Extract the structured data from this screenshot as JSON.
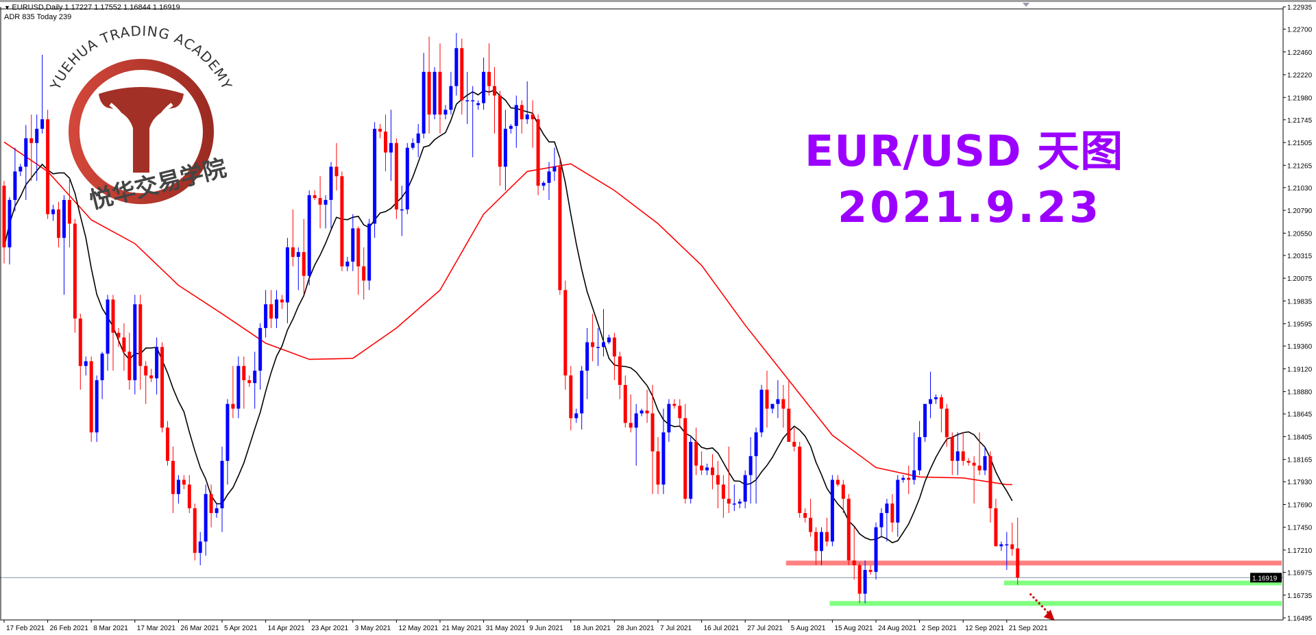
{
  "header": {
    "symbol_line": "EURUSD,Daily  1.17227 1.17552 1.16844 1.16919",
    "adr_line": "ADR 835  Today 239"
  },
  "overlay": {
    "title": "EUR/USD 天图",
    "date": "2021.9.23",
    "color": "#9b00ff"
  },
  "logo": {
    "text_en": "YUEHUA TRADING ACADEMY",
    "text_cn": "悦华交易学院",
    "color": "#b3362a"
  },
  "chart_data": {
    "type": "candlestick",
    "symbol": "EURUSD",
    "timeframe": "Daily",
    "colors": {
      "bull": "#0000ff",
      "bear": "#ff0000",
      "ma_fast": "#000000",
      "ma_slow": "#ff0000"
    },
    "ylim": [
      1.16495,
      1.22935
    ],
    "y_ticks": [
      "1.22935",
      "1.22700",
      "1.22460",
      "1.22220",
      "1.21980",
      "1.21745",
      "1.21505",
      "1.21265",
      "1.21030",
      "1.20790",
      "1.20550",
      "1.20315",
      "1.20075",
      "1.19835",
      "1.19595",
      "1.19360",
      "1.19120",
      "1.18880",
      "1.18645",
      "1.18405",
      "1.18165",
      "1.17930",
      "1.17690",
      "1.17450",
      "1.17210",
      "1.16975",
      "1.16735",
      "1.16495"
    ],
    "x_ticks": [
      "17 Feb 2021",
      "26 Feb 2021",
      "8 Mar 2021",
      "17 Mar 2021",
      "26 Mar 2021",
      "5 Apr 2021",
      "14 Apr 2021",
      "23 Apr 2021",
      "3 May 2021",
      "12 May 2021",
      "21 May 2021",
      "31 May 2021",
      "9 Jun 2021",
      "18 Jun 2021",
      "28 Jun 2021",
      "7 Jul 2021",
      "16 Jul 2021",
      "27 Jul 2021",
      "5 Aug 2021",
      "15 Aug 2021",
      "24 Aug 2021",
      "2 Sep 2021",
      "12 Sep 2021",
      "21 Sep 2021"
    ],
    "current_price": "1.16919",
    "ohlc": [
      [
        1.2105,
        1.211,
        1.2023,
        1.204
      ],
      [
        1.204,
        1.2093,
        1.2022,
        1.209
      ],
      [
        1.209,
        1.2145,
        1.2078,
        1.212
      ],
      [
        1.212,
        1.2128,
        1.2115,
        1.2125
      ],
      [
        1.2125,
        1.2169,
        1.209,
        1.2155
      ],
      [
        1.2155,
        1.218,
        1.211,
        1.215
      ],
      [
        1.215,
        1.218,
        1.211,
        1.2165
      ],
      [
        1.2165,
        1.2243,
        1.216,
        1.2175
      ],
      [
        1.2175,
        1.2185,
        1.207,
        1.2075
      ],
      [
        1.2075,
        1.2085,
        1.2068,
        1.208
      ],
      [
        1.208,
        1.2088,
        1.204,
        1.205
      ],
      [
        1.205,
        1.2095,
        1.199,
        1.209
      ],
      [
        1.209,
        1.2113,
        1.204,
        1.2065
      ],
      [
        1.2065,
        1.207,
        1.195,
        1.1965
      ],
      [
        1.1965,
        1.197,
        1.189,
        1.1915
      ],
      [
        1.1915,
        1.1925,
        1.1905,
        1.192
      ],
      [
        1.192,
        1.1925,
        1.1835,
        1.1845
      ],
      [
        1.1845,
        1.1905,
        1.1835,
        1.19
      ],
      [
        1.19,
        1.193,
        1.188,
        1.1928
      ],
      [
        1.1928,
        1.199,
        1.191,
        1.1985
      ],
      [
        1.1985,
        1.199,
        1.191,
        1.195
      ],
      [
        1.195,
        1.1955,
        1.1935,
        1.1945
      ],
      [
        1.1945,
        1.196,
        1.191,
        1.193
      ],
      [
        1.193,
        1.195,
        1.189,
        1.19
      ],
      [
        1.19,
        1.199,
        1.1885,
        1.198
      ],
      [
        1.198,
        1.199,
        1.189,
        1.1915
      ],
      [
        1.1915,
        1.192,
        1.1875,
        1.1905
      ],
      [
        1.1905,
        1.1912,
        1.1898,
        1.1902
      ],
      [
        1.1902,
        1.1945,
        1.1885,
        1.1935
      ],
      [
        1.1935,
        1.194,
        1.1845,
        1.185
      ],
      [
        1.185,
        1.1857,
        1.181,
        1.1815
      ],
      [
        1.1815,
        1.183,
        1.176,
        1.178
      ],
      [
        1.178,
        1.18,
        1.177,
        1.1795
      ],
      [
        1.1795,
        1.18,
        1.1785,
        1.179
      ],
      [
        1.179,
        1.18,
        1.176,
        1.1765
      ],
      [
        1.1765,
        1.177,
        1.171,
        1.1718
      ],
      [
        1.1718,
        1.174,
        1.1705,
        1.173
      ],
      [
        1.173,
        1.179,
        1.1715,
        1.178
      ],
      [
        1.178,
        1.179,
        1.1745,
        1.176
      ],
      [
        1.176,
        1.177,
        1.1755,
        1.1765
      ],
      [
        1.1765,
        1.183,
        1.174,
        1.1815
      ],
      [
        1.1815,
        1.188,
        1.179,
        1.1875
      ],
      [
        1.1875,
        1.1915,
        1.186,
        1.187
      ],
      [
        1.187,
        1.1925,
        1.186,
        1.1915
      ],
      [
        1.1915,
        1.1925,
        1.187,
        1.19
      ],
      [
        1.19,
        1.1905,
        1.1893,
        1.1897
      ],
      [
        1.1897,
        1.193,
        1.187,
        1.191
      ],
      [
        1.191,
        1.196,
        1.189,
        1.1955
      ],
      [
        1.1955,
        1.1995,
        1.1945,
        1.198
      ],
      [
        1.198,
        1.1995,
        1.1955,
        1.1965
      ],
      [
        1.1965,
        1.1995,
        1.1955,
        1.1985
      ],
      [
        1.1985,
        1.199,
        1.1975,
        1.1982
      ],
      [
        1.1982,
        1.205,
        1.196,
        1.204
      ],
      [
        1.204,
        1.208,
        1.202,
        1.203
      ],
      [
        1.203,
        1.204,
        1.1995,
        1.2035
      ],
      [
        1.2035,
        1.207,
        1.199,
        1.201
      ],
      [
        1.201,
        1.21,
        1.2,
        1.2095
      ],
      [
        1.2095,
        1.21,
        1.209,
        1.2092
      ],
      [
        1.2092,
        1.2115,
        1.206,
        1.2085
      ],
      [
        1.2085,
        1.2095,
        1.206,
        1.209
      ],
      [
        1.209,
        1.213,
        1.206,
        1.2125
      ],
      [
        1.2125,
        1.215,
        1.21,
        1.2115
      ],
      [
        1.2115,
        1.212,
        1.2015,
        1.202
      ],
      [
        1.202,
        1.203,
        1.2015,
        1.2025
      ],
      [
        1.2025,
        1.2075,
        1.2015,
        1.206
      ],
      [
        1.206,
        1.2062,
        1.199,
        1.202
      ],
      [
        1.202,
        1.204,
        1.1985,
        1.2005
      ],
      [
        1.2005,
        1.207,
        1.1995,
        1.2065
      ],
      [
        1.2065,
        1.2172,
        1.205,
        1.2165
      ],
      [
        1.2165,
        1.217,
        1.2155,
        1.2162
      ],
      [
        1.2162,
        1.218,
        1.212,
        1.214
      ],
      [
        1.214,
        1.2185,
        1.211,
        1.215
      ],
      [
        1.215,
        1.2155,
        1.207,
        1.208
      ],
      [
        1.208,
        1.2105,
        1.2052,
        1.208
      ],
      [
        1.208,
        1.215,
        1.2075,
        1.2145
      ],
      [
        1.2145,
        1.2155,
        1.2143,
        1.215
      ],
      [
        1.215,
        1.217,
        1.2135,
        1.216
      ],
      [
        1.216,
        1.2245,
        1.2155,
        1.2225
      ],
      [
        1.2225,
        1.2262,
        1.216,
        1.218
      ],
      [
        1.218,
        1.223,
        1.2175,
        1.2225
      ],
      [
        1.2225,
        1.2255,
        1.216,
        1.218
      ],
      [
        1.218,
        1.219,
        1.2175,
        1.2185
      ],
      [
        1.2185,
        1.2225,
        1.218,
        1.221
      ],
      [
        1.221,
        1.2266,
        1.22,
        1.225
      ],
      [
        1.225,
        1.226,
        1.218,
        1.2195
      ],
      [
        1.2195,
        1.2225,
        1.217,
        1.2195
      ],
      [
        1.2195,
        1.221,
        1.2135,
        1.2195
      ],
      [
        1.219,
        1.2195,
        1.2185,
        1.2192
      ],
      [
        1.2192,
        1.224,
        1.2185,
        1.2225
      ],
      [
        1.2225,
        1.2255,
        1.22,
        1.221
      ],
      [
        1.221,
        1.223,
        1.216,
        1.22
      ],
      [
        1.22,
        1.2205,
        1.2105,
        1.2125
      ],
      [
        1.2125,
        1.2185,
        1.21,
        1.2165
      ],
      [
        1.2165,
        1.217,
        1.216,
        1.2168
      ],
      [
        1.2168,
        1.22,
        1.2145,
        1.219
      ],
      [
        1.219,
        1.2195,
        1.216,
        1.2175
      ],
      [
        1.2175,
        1.2215,
        1.217,
        1.218
      ],
      [
        1.218,
        1.2195,
        1.2145,
        1.2175
      ],
      [
        1.2175,
        1.218,
        1.2095,
        1.2105
      ],
      [
        1.2105,
        1.211,
        1.21,
        1.2108
      ],
      [
        1.2108,
        1.213,
        1.209,
        1.212
      ],
      [
        1.212,
        1.2145,
        1.211,
        1.2125
      ],
      [
        1.2125,
        1.2135,
        1.199,
        1.1995
      ],
      [
        1.1995,
        1.2005,
        1.189,
        1.1905
      ],
      [
        1.1905,
        1.1915,
        1.1847,
        1.186
      ],
      [
        1.186,
        1.187,
        1.1855,
        1.1865
      ],
      [
        1.1865,
        1.1915,
        1.1848,
        1.191
      ],
      [
        1.191,
        1.1955,
        1.188,
        1.194
      ],
      [
        1.194,
        1.197,
        1.192,
        1.1935
      ],
      [
        1.1935,
        1.1955,
        1.1915,
        1.1935
      ],
      [
        1.1935,
        1.1975,
        1.1925,
        1.194
      ],
      [
        1.194,
        1.1948,
        1.1938,
        1.1945
      ],
      [
        1.1945,
        1.195,
        1.19,
        1.1925
      ],
      [
        1.1925,
        1.193,
        1.188,
        1.1895
      ],
      [
        1.1895,
        1.1905,
        1.185,
        1.1855
      ],
      [
        1.1855,
        1.1885,
        1.1845,
        1.185
      ],
      [
        1.185,
        1.1875,
        1.181,
        1.1865
      ],
      [
        1.1865,
        1.187,
        1.1862,
        1.1868
      ],
      [
        1.1868,
        1.189,
        1.1855,
        1.1865
      ],
      [
        1.1865,
        1.1895,
        1.178,
        1.1825
      ],
      [
        1.1825,
        1.184,
        1.178,
        1.179
      ],
      [
        1.179,
        1.187,
        1.178,
        1.1845
      ],
      [
        1.1845,
        1.188,
        1.1835,
        1.1875
      ],
      [
        1.1875,
        1.188,
        1.187,
        1.1873
      ],
      [
        1.1873,
        1.188,
        1.185,
        1.186
      ],
      [
        1.186,
        1.1875,
        1.177,
        1.1775
      ],
      [
        1.1775,
        1.184,
        1.177,
        1.1835
      ],
      [
        1.1835,
        1.185,
        1.18,
        1.181
      ],
      [
        1.181,
        1.1825,
        1.18,
        1.1805
      ],
      [
        1.1805,
        1.1812,
        1.18,
        1.1808
      ],
      [
        1.1808,
        1.1822,
        1.1785,
        1.18
      ],
      [
        1.18,
        1.1815,
        1.1765,
        1.179
      ],
      [
        1.179,
        1.18,
        1.1755,
        1.1775
      ],
      [
        1.1775,
        1.183,
        1.176,
        1.177
      ],
      [
        1.177,
        1.179,
        1.1762,
        1.177
      ],
      [
        1.177,
        1.1775,
        1.1765,
        1.1772
      ],
      [
        1.1772,
        1.1805,
        1.1765,
        1.18
      ],
      [
        1.18,
        1.184,
        1.177,
        1.182
      ],
      [
        1.182,
        1.185,
        1.177,
        1.1845
      ],
      [
        1.1845,
        1.1895,
        1.184,
        1.189
      ],
      [
        1.189,
        1.191,
        1.185,
        1.187
      ],
      [
        1.187,
        1.1875,
        1.1865,
        1.1875
      ],
      [
        1.1875,
        1.19,
        1.186,
        1.188
      ],
      [
        1.188,
        1.1895,
        1.185,
        1.187
      ],
      [
        1.187,
        1.19,
        1.1835,
        1.1835
      ],
      [
        1.1835,
        1.185,
        1.1825,
        1.183
      ],
      [
        1.183,
        1.1835,
        1.1755,
        1.176
      ],
      [
        1.176,
        1.1765,
        1.175,
        1.1755
      ],
      [
        1.1755,
        1.1775,
        1.1735,
        1.174
      ],
      [
        1.174,
        1.1745,
        1.1705,
        1.172
      ],
      [
        1.172,
        1.1745,
        1.1705,
        1.174
      ],
      [
        1.174,
        1.1755,
        1.1725,
        1.173
      ],
      [
        1.173,
        1.18,
        1.1725,
        1.1795
      ],
      [
        1.1795,
        1.18,
        1.1788,
        1.179
      ],
      [
        1.179,
        1.1795,
        1.176,
        1.1775
      ],
      [
        1.1775,
        1.178,
        1.1705,
        1.171
      ],
      [
        1.171,
        1.1745,
        1.169,
        1.1705
      ],
      [
        1.1705,
        1.1708,
        1.1665,
        1.1675
      ],
      [
        1.1675,
        1.171,
        1.1665,
        1.17
      ],
      [
        1.17,
        1.1705,
        1.1695,
        1.1698
      ],
      [
        1.1698,
        1.175,
        1.169,
        1.1745
      ],
      [
        1.1745,
        1.1765,
        1.1735,
        1.176
      ],
      [
        1.176,
        1.1775,
        1.173,
        1.177
      ],
      [
        1.177,
        1.178,
        1.174,
        1.175
      ],
      [
        1.175,
        1.18,
        1.1735,
        1.1795
      ],
      [
        1.1795,
        1.18,
        1.1792,
        1.1797
      ],
      [
        1.1797,
        1.181,
        1.178,
        1.1795
      ],
      [
        1.1795,
        1.1845,
        1.179,
        1.1805
      ],
      [
        1.1805,
        1.1857,
        1.18,
        1.184
      ],
      [
        1.184,
        1.187,
        1.1835,
        1.1875
      ],
      [
        1.1875,
        1.1909,
        1.186,
        1.188
      ],
      [
        1.188,
        1.1885,
        1.1875,
        1.1882
      ],
      [
        1.1882,
        1.1885,
        1.1845,
        1.187
      ],
      [
        1.187,
        1.1875,
        1.183,
        1.184
      ],
      [
        1.184,
        1.1845,
        1.18,
        1.1815
      ],
      [
        1.1815,
        1.1845,
        1.18,
        1.1825
      ],
      [
        1.1825,
        1.1845,
        1.181,
        1.1815
      ],
      [
        1.1815,
        1.1818,
        1.181,
        1.1813
      ],
      [
        1.1813,
        1.182,
        1.177,
        1.181
      ],
      [
        1.181,
        1.1845,
        1.18,
        1.1805
      ],
      [
        1.1805,
        1.183,
        1.18,
        1.182
      ],
      [
        1.182,
        1.1825,
        1.175,
        1.1765
      ],
      [
        1.1765,
        1.1775,
        1.1725,
        1.1725
      ],
      [
        1.1725,
        1.173,
        1.172,
        1.1727
      ],
      [
        1.1727,
        1.174,
        1.17,
        1.1727
      ],
      [
        1.1727,
        1.175,
        1.1715,
        1.1722
      ],
      [
        1.17227,
        1.17552,
        1.16844,
        1.16919
      ]
    ],
    "ma_slow": [
      {
        "date": "17 Feb 2021",
        "value": 1.2151
      },
      {
        "date": "26 Feb 2021",
        "value": 1.212
      },
      {
        "date": "8 Mar 2021",
        "value": 1.2069
      },
      {
        "date": "17 Mar 2021",
        "value": 1.2044
      },
      {
        "date": "26 Mar 2021",
        "value": 1.2
      },
      {
        "date": "5 Apr 2021",
        "value": 1.197
      },
      {
        "date": "14 Apr 2021",
        "value": 1.1939
      },
      {
        "date": "23 Apr 2021",
        "value": 1.1922
      },
      {
        "date": "3 May 2021",
        "value": 1.1923
      },
      {
        "date": "12 May 2021",
        "value": 1.1955
      },
      {
        "date": "21 May 2021",
        "value": 1.1995
      },
      {
        "date": "31 May 2021",
        "value": 1.2075
      },
      {
        "date": "9 Jun 2021",
        "value": 1.212
      },
      {
        "date": "18 Jun 2021",
        "value": 1.2128
      },
      {
        "date": "28 Jun 2021",
        "value": 1.21
      },
      {
        "date": "7 Jul 2021",
        "value": 1.2065
      },
      {
        "date": "16 Jul 2021",
        "value": 1.2021
      },
      {
        "date": "27 Jul 2021",
        "value": 1.1958
      },
      {
        "date": "5 Aug 2021",
        "value": 1.19
      },
      {
        "date": "15 Aug 2021",
        "value": 1.1842
      },
      {
        "date": "24 Aug 2021",
        "value": 1.1808
      },
      {
        "date": "2 Sep 2021",
        "value": 1.1798
      },
      {
        "date": "12 Sep 2021",
        "value": 1.1797
      },
      {
        "date": "21 Sep 2021",
        "value": 1.179
      }
    ],
    "levels": [
      {
        "kind": "resistance",
        "price": 1.17073,
        "color": "#ff8080",
        "from": "5 Aug 2021"
      },
      {
        "kind": "support",
        "price": 1.16863,
        "color": "#80ff80",
        "from": "21 Sep 2021"
      },
      {
        "kind": "support",
        "price": 1.16647,
        "color": "#80ff80",
        "from": "15 Aug 2021"
      }
    ],
    "arrow": {
      "direction": "down",
      "color": "#cc0000",
      "style": "dotted"
    }
  }
}
